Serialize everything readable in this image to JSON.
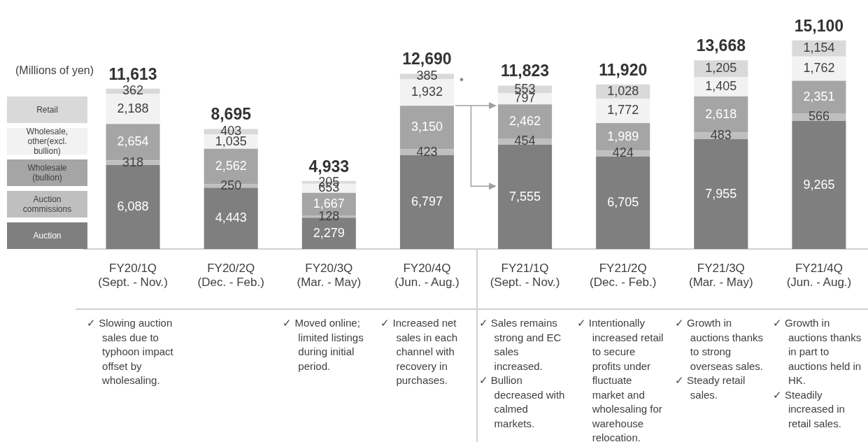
{
  "chart_data": {
    "type": "bar",
    "stacked": true,
    "legend": "left",
    "categories": [
      "FY20/1Q\n(Sept. - Nov.)",
      "FY20/2Q\n(Dec. - Feb.)",
      "FY20/3Q\n(Mar. - May)",
      "FY20/4Q\n(Jun. - Aug.)",
      "FY21/1Q\n(Sept. - Nov.)",
      "FY21/2Q\n(Dec. - Feb.)",
      "FY21/3Q\n(Mar. - May)",
      "FY21/4Q\n(Jun. - Aug.)"
    ],
    "series": [
      {
        "name": "Auction",
        "color": "#7f7f7f",
        "values": [
          6088,
          4443,
          2279,
          6797,
          7555,
          6705,
          7955,
          9265
        ],
        "value_labels": [
          "6,088",
          "4,443",
          "2,279",
          "6,797",
          "7,555",
          "6,705",
          "7,955",
          "9,265"
        ]
      },
      {
        "name": "Auction commissions",
        "color": "#bfbfbf",
        "values": [
          318,
          250,
          128,
          423,
          454,
          424,
          483,
          566
        ],
        "value_labels": [
          "318",
          "250",
          "128",
          "423",
          "454",
          "424",
          "483",
          "566"
        ]
      },
      {
        "name": "Wholesale (bullion)",
        "color": "#a5a5a5",
        "values": [
          2654,
          2562,
          1667,
          3150,
          2462,
          1989,
          2618,
          2351
        ],
        "value_labels": [
          "2,654",
          "2,562",
          "1,667",
          "3,150",
          "2,462",
          "1,989",
          "2,618",
          "2,351"
        ]
      },
      {
        "name": "Wholesale, other(excl. bullion)",
        "color": "#f2f2f2",
        "values": [
          2188,
          1035,
          653,
          1932,
          797,
          1772,
          1405,
          1762
        ],
        "value_labels": [
          "2,188",
          "1,035",
          "653",
          "1,932",
          "797",
          "1,772",
          "1,405",
          "1,762"
        ]
      },
      {
        "name": "Retail",
        "color": "#d9d9d9",
        "values": [
          362,
          403,
          205,
          385,
          553,
          1028,
          1205,
          1154
        ],
        "value_labels": [
          "362",
          "403",
          "205",
          "385",
          "553",
          "1,028",
          "1,205",
          "1,154"
        ]
      }
    ],
    "totals": [
      "11,613",
      "8,695",
      "4,933",
      "12,690",
      "11,823",
      "11,920",
      "13,668",
      "15,100"
    ],
    "annotations": [
      "(Millions of yen)",
      "*",
      "✓ Slowing auction sales due to typhoon impact offset by wholesaling.",
      "✓ Moved online; limited listings during initial period.",
      "✓ Increased net sales in each channel with recovery in purchases.",
      "✓ Sales remains strong and EC sales increased.\n✓ Bullion decreased with calmed markets.",
      "✓ Intentionally increased retail to secure profits under fluctuate market and wholesaling for warehouse relocation.",
      "✓ Growth in auctions thanks to strong overseas sales.\n✓ Steady retail sales.",
      "✓ Growth in auctions thanks in part to auctions held in HK.\n✓ Steadily increased in retail sales."
    ]
  }
}
